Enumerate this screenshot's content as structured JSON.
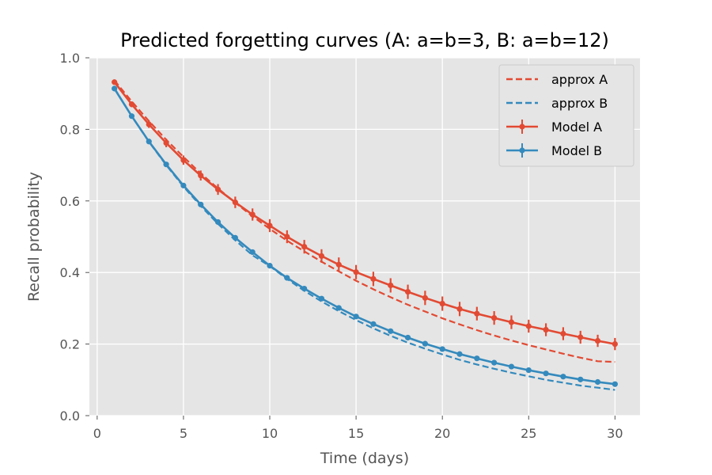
{
  "chart_data": {
    "type": "line",
    "title": "Predicted forgetting curves (A: a=b=3, B: a=b=12)",
    "xlabel": "Time (days)",
    "ylabel": "Recall probability",
    "xlim": [
      -0.45,
      31.45
    ],
    "ylim": [
      0,
      1
    ],
    "xticks": [
      0,
      5,
      10,
      15,
      20,
      25,
      30
    ],
    "yticks": [
      0.0,
      0.2,
      0.4,
      0.6,
      0.8,
      1.0
    ],
    "xtick_labels": [
      "0",
      "5",
      "10",
      "15",
      "20",
      "25",
      "30"
    ],
    "ytick_labels": [
      "0.0",
      "0.2",
      "0.4",
      "0.6",
      "0.8",
      "1.0"
    ],
    "grid": true,
    "legend_position": "top-right",
    "x": [
      1,
      2,
      3,
      4,
      5,
      6,
      7,
      8,
      9,
      10,
      11,
      12,
      13,
      14,
      15,
      16,
      17,
      18,
      19,
      20,
      21,
      22,
      23,
      24,
      25,
      26,
      27,
      28,
      29,
      30
    ],
    "series": [
      {
        "name": "approx A",
        "style": "dashed",
        "color": "#E24A33",
        "values": [
          0.937,
          0.878,
          0.823,
          0.771,
          0.723,
          0.677,
          0.635,
          0.595,
          0.557,
          0.522,
          0.489,
          0.459,
          0.43,
          0.403,
          0.377,
          0.353,
          0.331,
          0.31,
          0.291,
          0.272,
          0.255,
          0.239,
          0.224,
          0.21,
          0.197,
          0.185,
          0.173,
          0.162,
          0.152,
          0.15
        ]
      },
      {
        "name": "approx B",
        "style": "dashed",
        "color": "#348ABD",
        "values": [
          0.915,
          0.837,
          0.765,
          0.7,
          0.64,
          0.586,
          0.536,
          0.49,
          0.448,
          0.418,
          0.382,
          0.349,
          0.319,
          0.292,
          0.267,
          0.244,
          0.223,
          0.204,
          0.187,
          0.171,
          0.156,
          0.143,
          0.131,
          0.12,
          0.11,
          0.1,
          0.092,
          0.084,
          0.078,
          0.072
        ]
      },
      {
        "name": "Model A",
        "style": "solid-markers-errorbars",
        "color": "#E24A33",
        "values": [
          0.932,
          0.87,
          0.814,
          0.762,
          0.714,
          0.671,
          0.632,
          0.596,
          0.562,
          0.531,
          0.5,
          0.472,
          0.446,
          0.422,
          0.401,
          0.382,
          0.364,
          0.346,
          0.329,
          0.313,
          0.298,
          0.285,
          0.273,
          0.261,
          0.25,
          0.24,
          0.229,
          0.219,
          0.209,
          0.2
        ],
        "errors": [
          0.007,
          0.008,
          0.01,
          0.012,
          0.013,
          0.014,
          0.015,
          0.016,
          0.017,
          0.018,
          0.018,
          0.019,
          0.019,
          0.02,
          0.02,
          0.02,
          0.02,
          0.02,
          0.02,
          0.02,
          0.02,
          0.019,
          0.019,
          0.019,
          0.018,
          0.018,
          0.018,
          0.018,
          0.017,
          0.017
        ]
      },
      {
        "name": "Model B",
        "style": "solid-markers-errorbars",
        "color": "#348ABD",
        "values": [
          0.914,
          0.837,
          0.766,
          0.702,
          0.643,
          0.59,
          0.541,
          0.497,
          0.457,
          0.419,
          0.385,
          0.355,
          0.327,
          0.301,
          0.277,
          0.256,
          0.236,
          0.218,
          0.201,
          0.186,
          0.172,
          0.16,
          0.148,
          0.137,
          0.127,
          0.118,
          0.109,
          0.101,
          0.094,
          0.088
        ],
        "errors": [
          0.004,
          0.004,
          0.004,
          0.004,
          0.004,
          0.004,
          0.004,
          0.004,
          0.004,
          0.004,
          0.004,
          0.004,
          0.004,
          0.004,
          0.004,
          0.004,
          0.004,
          0.004,
          0.004,
          0.004,
          0.004,
          0.004,
          0.003,
          0.003,
          0.003,
          0.003,
          0.003,
          0.003,
          0.003,
          0.003
        ]
      }
    ]
  }
}
